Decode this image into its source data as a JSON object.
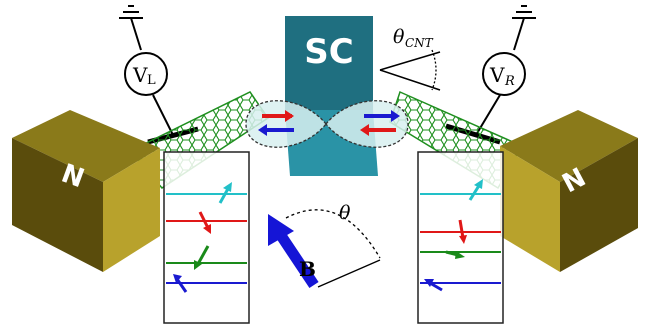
{
  "labels": {
    "superconductor": "SC",
    "magnet_left": "N",
    "magnet_right": "N",
    "voltmeter_left": "V",
    "voltmeter_left_sub": "L",
    "voltmeter_right": "V",
    "voltmeter_right_sub": "R",
    "cnt_angle": "θ",
    "cnt_angle_sub": "CNT",
    "field_angle": "θ",
    "field_vector": "B"
  },
  "colors": {
    "sc_top": "#1f6f80",
    "sc_front": "#2a93a6",
    "magnet_front": "#5a4c0c",
    "magnet_side": "#b8a22c",
    "magnet_top": "#8a7a1a",
    "nanotube": "#1f8f1f",
    "b_arrow": "#1515d6",
    "level_cyan": "#22c0c8",
    "level_red": "#e01818",
    "level_green": "#1a8a1a",
    "level_blue": "#1a1ad0"
  },
  "energy_levels_left": [
    "cyan",
    "red",
    "green",
    "blue"
  ],
  "energy_levels_right": [
    "cyan",
    "red",
    "green",
    "blue"
  ]
}
